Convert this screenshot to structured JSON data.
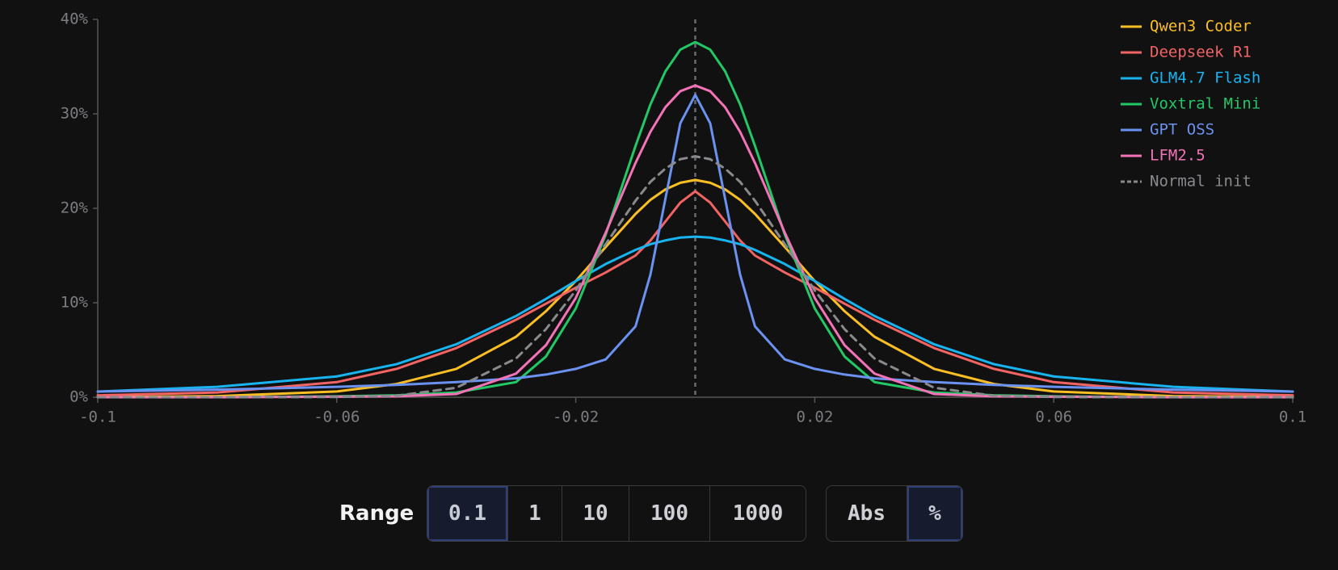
{
  "chart_data": {
    "type": "line",
    "x": [
      -0.1,
      -0.08,
      -0.06,
      -0.05,
      -0.04,
      -0.03,
      -0.025,
      -0.02,
      -0.015,
      -0.01,
      -0.0075,
      -0.005,
      -0.0025,
      0,
      0.0025,
      0.005,
      0.0075,
      0.01,
      0.015,
      0.02,
      0.025,
      0.03,
      0.04,
      0.05,
      0.06,
      0.08,
      0.1
    ],
    "series": [
      {
        "name": "Qwen3 Coder",
        "color": "#fbbf24",
        "values": [
          0.02,
          0.12,
          0.61,
          1.4,
          3.0,
          6.4,
          9.1,
          12.3,
          15.9,
          19.4,
          20.9,
          22.0,
          22.7,
          23,
          22.7,
          22.0,
          20.9,
          19.4,
          15.9,
          12.3,
          9.1,
          6.4,
          3.0,
          1.4,
          0.61,
          0.12,
          0.02
        ]
      },
      {
        "name": "Deepseek R1",
        "color": "#f26464",
        "values": [
          0.2,
          0.5,
          1.6,
          3.0,
          5.2,
          8.2,
          9.9,
          11.6,
          13.2,
          15,
          16.6,
          18.6,
          20.6,
          21.8,
          20.6,
          18.6,
          16.6,
          15,
          13.2,
          11.6,
          9.9,
          8.2,
          5.2,
          3.0,
          1.6,
          0.5,
          0.2
        ]
      },
      {
        "name": "GLM4.7 Flash",
        "color": "#18b4f0",
        "values": [
          0.6,
          1.1,
          2.2,
          3.5,
          5.6,
          8.6,
          10.4,
          12.3,
          14.1,
          15.6,
          16.2,
          16.6,
          16.9,
          17,
          16.9,
          16.6,
          16.2,
          15.6,
          14.1,
          12.3,
          10.4,
          8.6,
          5.6,
          3.5,
          2.2,
          1.1,
          0.6
        ]
      },
      {
        "name": "Voxtral Mini",
        "color": "#22c866",
        "values": [
          0,
          0,
          0.1,
          0.2,
          0.5,
          1.6,
          4.3,
          9.4,
          17.2,
          26.6,
          31.0,
          34.5,
          36.8,
          37.6,
          36.8,
          34.5,
          31.0,
          26.6,
          17.2,
          9.4,
          4.3,
          1.6,
          0.5,
          0.2,
          0.1,
          0,
          0
        ]
      },
      {
        "name": "GPT OSS",
        "color": "#6b92f0",
        "values": [
          0.6,
          0.8,
          1.1,
          1.3,
          1.6,
          2,
          2.4,
          3,
          4,
          7.5,
          13,
          21,
          29,
          32,
          29,
          21,
          13,
          7.5,
          4,
          3,
          2.4,
          2,
          1.6,
          1.3,
          1.1,
          0.8,
          0.6
        ]
      },
      {
        "name": "LFM2.5",
        "color": "#f472b6",
        "values": [
          0,
          0,
          0.05,
          0.1,
          0.34,
          2.5,
          5.5,
          10.5,
          17.4,
          24.8,
          28.1,
          30.7,
          32.4,
          33,
          32.4,
          30.7,
          28.1,
          24.8,
          17.4,
          10.5,
          5.5,
          2.5,
          0.34,
          0.1,
          0.05,
          0,
          0
        ]
      },
      {
        "name": "Normal init",
        "color": "#8a8a8e",
        "style": "dashed",
        "values": [
          0,
          0,
          0.02,
          0.16,
          1.0,
          4.1,
          7.2,
          11.3,
          16.2,
          20.8,
          22.8,
          24.2,
          25.2,
          25.5,
          25.2,
          24.2,
          22.8,
          20.8,
          16.2,
          11.3,
          7.2,
          4.1,
          1.0,
          0.16,
          0.02,
          0,
          0
        ]
      }
    ],
    "xlim": [
      -0.1,
      0.1
    ],
    "xticks": [
      -0.1,
      -0.06,
      -0.02,
      0.02,
      0.06,
      0.1
    ],
    "ylim": [
      0,
      40
    ],
    "yticks": [
      {
        "value": 0,
        "label": "0%"
      },
      {
        "value": 10,
        "label": "10%"
      },
      {
        "value": 20,
        "label": "20%"
      },
      {
        "value": 30,
        "label": "30%"
      },
      {
        "value": 40,
        "label": "40%"
      }
    ],
    "grid": false,
    "center_line": true,
    "legend": "upper right"
  },
  "controls": {
    "range_label": "Range",
    "range_options": [
      "0.1",
      "1",
      "10",
      "100",
      "1000"
    ],
    "mode_options": [
      "Abs",
      "%"
    ]
  }
}
